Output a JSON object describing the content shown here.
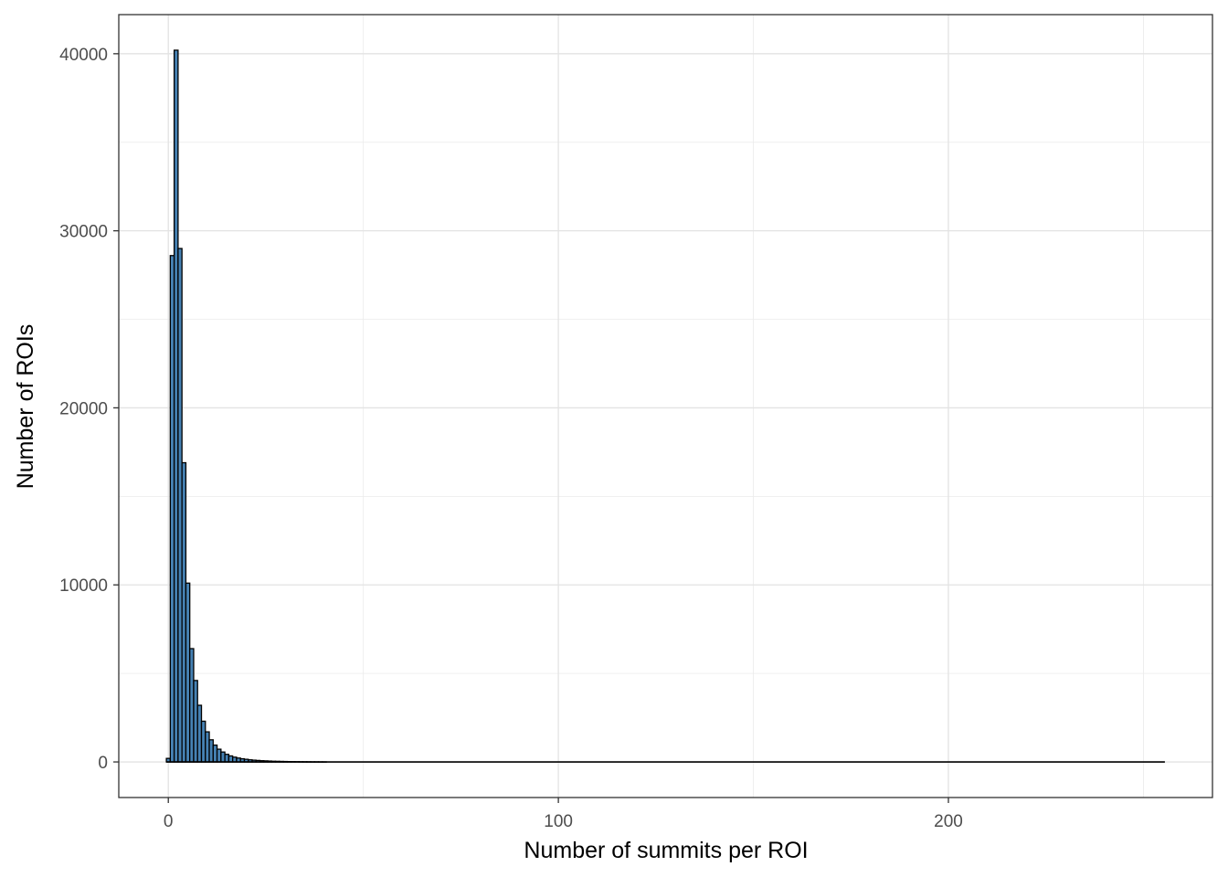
{
  "chart_data": {
    "type": "bar",
    "subtype": "histogram",
    "title": "",
    "xlabel": "Number of summits per ROI",
    "ylabel": "Number of ROIs",
    "xlim": [
      -12.7,
      267.7
    ],
    "ylim": [
      -2010,
      42210
    ],
    "x_ticks": [
      0,
      100,
      200
    ],
    "x_tick_labels": [
      "0",
      "100",
      "200"
    ],
    "y_ticks": [
      0,
      10000,
      20000,
      30000,
      40000
    ],
    "y_tick_labels": [
      "0",
      "10000",
      "20000",
      "30000",
      "40000"
    ],
    "bin_width": 1,
    "x_range": [
      0,
      255
    ],
    "bins_x": [
      0,
      1,
      2,
      3,
      4,
      5,
      6,
      7,
      8,
      9,
      10,
      11,
      12,
      13,
      14,
      15,
      16,
      17,
      18,
      19,
      20,
      21,
      22,
      23,
      24,
      25,
      26,
      27,
      28,
      29,
      30,
      31,
      32,
      33,
      34,
      35,
      36,
      37,
      38,
      39,
      40
    ],
    "values": [
      200,
      28600,
      40200,
      29000,
      16900,
      10100,
      6400,
      4600,
      3200,
      2300,
      1700,
      1250,
      950,
      720,
      560,
      430,
      340,
      270,
      220,
      180,
      150,
      120,
      100,
      85,
      70,
      60,
      50,
      40,
      35,
      30,
      25,
      20,
      18,
      15,
      12,
      10,
      8,
      6,
      5,
      4,
      3
    ],
    "fill_color": "#4682b4",
    "border_color": "#000000",
    "grid": true,
    "theme": "bw"
  }
}
